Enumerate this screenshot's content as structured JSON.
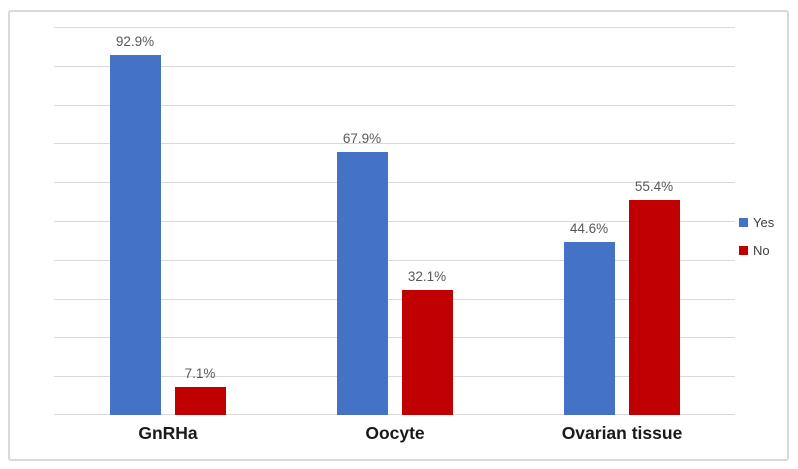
{
  "chart_data": {
    "type": "bar",
    "categories": [
      "GnRHa",
      "Oocyte",
      "Ovarian tissue"
    ],
    "series": [
      {
        "name": "Yes",
        "color": "#4472C4",
        "values": [
          92.9,
          67.9,
          44.6
        ],
        "labels": [
          "92.9%",
          "67.9%",
          "44.6%"
        ]
      },
      {
        "name": "No",
        "color": "#C00000",
        "values": [
          7.1,
          32.1,
          55.4
        ],
        "labels": [
          "7.1%",
          "32.1%",
          "55.4%"
        ]
      }
    ],
    "title": "",
    "xlabel": "",
    "ylabel": "",
    "ylim": [
      0,
      100
    ],
    "gridline_step": 10,
    "grid": true,
    "legend_position": "right",
    "legend": [
      "Yes",
      "No"
    ],
    "colors": {
      "grid": "#D9D9D9",
      "frame_border": "#D9D9D9",
      "background": "#FFFFFF",
      "data_label_text": "#595959",
      "category_label_text": "#1A1A1A",
      "legend_text": "#404040"
    }
  }
}
